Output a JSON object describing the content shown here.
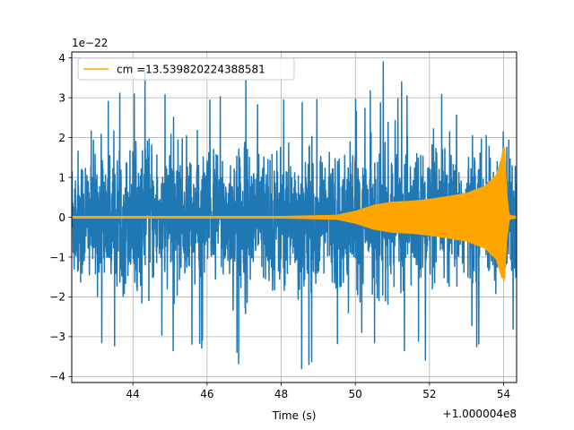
{
  "chart_data": {
    "type": "line",
    "xlabel": "Time (s)",
    "ylabel": "",
    "x_offset_text": "+1.000004e8",
    "y_offset_text": "1e−22",
    "xlim": [
      42.35,
      54.35
    ],
    "ylim": [
      -4.15,
      4.15
    ],
    "xticks": [
      44,
      46,
      48,
      50,
      52,
      54
    ],
    "xtick_labels": [
      "44",
      "46",
      "48",
      "50",
      "52",
      "54"
    ],
    "yticks": [
      -4,
      -3,
      -2,
      -1,
      0,
      1,
      2,
      3,
      4
    ],
    "ytick_labels": [
      "−4",
      "−3",
      "−2",
      "−1",
      "0",
      "1",
      "2",
      "3",
      "4"
    ],
    "grid": true,
    "legend_position": "upper-left",
    "series": [
      {
        "name": "",
        "color": "#1f77b4",
        "kind": "noise",
        "typical_envelope": 1.8,
        "max_peak": 3.9,
        "min_peak": -3.8
      },
      {
        "name": "cm =13.539820224388581",
        "color": "#ffa500",
        "kind": "chirp",
        "envelope_points": [
          [
            42.35,
            0.02
          ],
          [
            48.0,
            0.02
          ],
          [
            49.5,
            0.05
          ],
          [
            50.0,
            0.15
          ],
          [
            50.5,
            0.3
          ],
          [
            51.0,
            0.38
          ],
          [
            51.5,
            0.4
          ],
          [
            52.0,
            0.45
          ],
          [
            52.5,
            0.52
          ],
          [
            53.0,
            0.6
          ],
          [
            53.5,
            0.78
          ],
          [
            53.8,
            1.05
          ],
          [
            53.95,
            1.5
          ],
          [
            54.02,
            1.72
          ],
          [
            54.08,
            0.6
          ],
          [
            54.15,
            0.05
          ],
          [
            54.35,
            0.02
          ]
        ]
      }
    ]
  }
}
